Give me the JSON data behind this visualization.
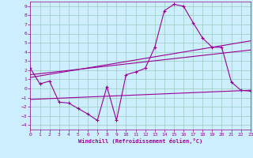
{
  "xlabel": "Windchill (Refroidissement éolien,°C)",
  "bg_color": "#cceeff",
  "line_color": "#990099",
  "grid_color": "#99ccbb",
  "xlim": [
    0,
    23
  ],
  "ylim": [
    -4.5,
    9.5
  ],
  "xticks": [
    0,
    1,
    2,
    3,
    4,
    5,
    6,
    7,
    8,
    9,
    10,
    11,
    12,
    13,
    14,
    15,
    16,
    17,
    18,
    19,
    20,
    21,
    22,
    23
  ],
  "yticks": [
    -4,
    -3,
    -2,
    -1,
    0,
    1,
    2,
    3,
    4,
    5,
    6,
    7,
    8,
    9
  ],
  "line1_x": [
    0,
    1,
    2,
    3,
    4,
    5,
    6,
    7,
    8,
    9,
    10,
    11,
    12,
    13,
    14,
    15,
    16,
    17,
    18,
    19,
    20,
    21,
    22,
    23
  ],
  "line1_y": [
    2.2,
    0.5,
    0.8,
    -1.5,
    -1.6,
    -2.2,
    -2.8,
    -3.5,
    0.2,
    -3.5,
    1.5,
    1.8,
    2.2,
    4.5,
    8.5,
    9.2,
    9.0,
    7.2,
    5.5,
    4.5,
    4.5,
    0.7,
    -0.2,
    -0.3
  ],
  "line2_x": [
    0,
    23
  ],
  "line2_y": [
    1.2,
    5.2
  ],
  "line3_x": [
    0,
    23
  ],
  "line3_y": [
    1.5,
    4.2
  ],
  "line4_x": [
    0,
    23
  ],
  "line4_y": [
    -1.2,
    -0.2
  ]
}
